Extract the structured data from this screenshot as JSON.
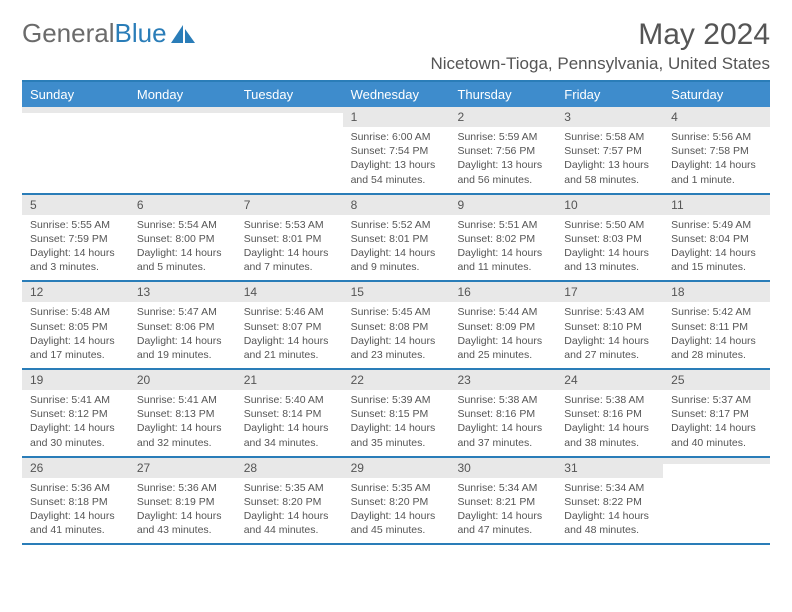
{
  "logo": {
    "part1": "General",
    "part2": "Blue"
  },
  "title": "May 2024",
  "location": "Nicetown-Tioga, Pennsylvania, United States",
  "colors": {
    "accent": "#2a7db8",
    "header_bg": "#3e8ccc",
    "daybar_bg": "#e8e8e8",
    "text": "#555555"
  },
  "day_headers": [
    "Sunday",
    "Monday",
    "Tuesday",
    "Wednesday",
    "Thursday",
    "Friday",
    "Saturday"
  ],
  "weeks": [
    [
      {
        "n": "",
        "sr": "",
        "ss": "",
        "dl": ""
      },
      {
        "n": "",
        "sr": "",
        "ss": "",
        "dl": ""
      },
      {
        "n": "",
        "sr": "",
        "ss": "",
        "dl": ""
      },
      {
        "n": "1",
        "sr": "Sunrise: 6:00 AM",
        "ss": "Sunset: 7:54 PM",
        "dl": "Daylight: 13 hours and 54 minutes."
      },
      {
        "n": "2",
        "sr": "Sunrise: 5:59 AM",
        "ss": "Sunset: 7:56 PM",
        "dl": "Daylight: 13 hours and 56 minutes."
      },
      {
        "n": "3",
        "sr": "Sunrise: 5:58 AM",
        "ss": "Sunset: 7:57 PM",
        "dl": "Daylight: 13 hours and 58 minutes."
      },
      {
        "n": "4",
        "sr": "Sunrise: 5:56 AM",
        "ss": "Sunset: 7:58 PM",
        "dl": "Daylight: 14 hours and 1 minute."
      }
    ],
    [
      {
        "n": "5",
        "sr": "Sunrise: 5:55 AM",
        "ss": "Sunset: 7:59 PM",
        "dl": "Daylight: 14 hours and 3 minutes."
      },
      {
        "n": "6",
        "sr": "Sunrise: 5:54 AM",
        "ss": "Sunset: 8:00 PM",
        "dl": "Daylight: 14 hours and 5 minutes."
      },
      {
        "n": "7",
        "sr": "Sunrise: 5:53 AM",
        "ss": "Sunset: 8:01 PM",
        "dl": "Daylight: 14 hours and 7 minutes."
      },
      {
        "n": "8",
        "sr": "Sunrise: 5:52 AM",
        "ss": "Sunset: 8:01 PM",
        "dl": "Daylight: 14 hours and 9 minutes."
      },
      {
        "n": "9",
        "sr": "Sunrise: 5:51 AM",
        "ss": "Sunset: 8:02 PM",
        "dl": "Daylight: 14 hours and 11 minutes."
      },
      {
        "n": "10",
        "sr": "Sunrise: 5:50 AM",
        "ss": "Sunset: 8:03 PM",
        "dl": "Daylight: 14 hours and 13 minutes."
      },
      {
        "n": "11",
        "sr": "Sunrise: 5:49 AM",
        "ss": "Sunset: 8:04 PM",
        "dl": "Daylight: 14 hours and 15 minutes."
      }
    ],
    [
      {
        "n": "12",
        "sr": "Sunrise: 5:48 AM",
        "ss": "Sunset: 8:05 PM",
        "dl": "Daylight: 14 hours and 17 minutes."
      },
      {
        "n": "13",
        "sr": "Sunrise: 5:47 AM",
        "ss": "Sunset: 8:06 PM",
        "dl": "Daylight: 14 hours and 19 minutes."
      },
      {
        "n": "14",
        "sr": "Sunrise: 5:46 AM",
        "ss": "Sunset: 8:07 PM",
        "dl": "Daylight: 14 hours and 21 minutes."
      },
      {
        "n": "15",
        "sr": "Sunrise: 5:45 AM",
        "ss": "Sunset: 8:08 PM",
        "dl": "Daylight: 14 hours and 23 minutes."
      },
      {
        "n": "16",
        "sr": "Sunrise: 5:44 AM",
        "ss": "Sunset: 8:09 PM",
        "dl": "Daylight: 14 hours and 25 minutes."
      },
      {
        "n": "17",
        "sr": "Sunrise: 5:43 AM",
        "ss": "Sunset: 8:10 PM",
        "dl": "Daylight: 14 hours and 27 minutes."
      },
      {
        "n": "18",
        "sr": "Sunrise: 5:42 AM",
        "ss": "Sunset: 8:11 PM",
        "dl": "Daylight: 14 hours and 28 minutes."
      }
    ],
    [
      {
        "n": "19",
        "sr": "Sunrise: 5:41 AM",
        "ss": "Sunset: 8:12 PM",
        "dl": "Daylight: 14 hours and 30 minutes."
      },
      {
        "n": "20",
        "sr": "Sunrise: 5:41 AM",
        "ss": "Sunset: 8:13 PM",
        "dl": "Daylight: 14 hours and 32 minutes."
      },
      {
        "n": "21",
        "sr": "Sunrise: 5:40 AM",
        "ss": "Sunset: 8:14 PM",
        "dl": "Daylight: 14 hours and 34 minutes."
      },
      {
        "n": "22",
        "sr": "Sunrise: 5:39 AM",
        "ss": "Sunset: 8:15 PM",
        "dl": "Daylight: 14 hours and 35 minutes."
      },
      {
        "n": "23",
        "sr": "Sunrise: 5:38 AM",
        "ss": "Sunset: 8:16 PM",
        "dl": "Daylight: 14 hours and 37 minutes."
      },
      {
        "n": "24",
        "sr": "Sunrise: 5:38 AM",
        "ss": "Sunset: 8:16 PM",
        "dl": "Daylight: 14 hours and 38 minutes."
      },
      {
        "n": "25",
        "sr": "Sunrise: 5:37 AM",
        "ss": "Sunset: 8:17 PM",
        "dl": "Daylight: 14 hours and 40 minutes."
      }
    ],
    [
      {
        "n": "26",
        "sr": "Sunrise: 5:36 AM",
        "ss": "Sunset: 8:18 PM",
        "dl": "Daylight: 14 hours and 41 minutes."
      },
      {
        "n": "27",
        "sr": "Sunrise: 5:36 AM",
        "ss": "Sunset: 8:19 PM",
        "dl": "Daylight: 14 hours and 43 minutes."
      },
      {
        "n": "28",
        "sr": "Sunrise: 5:35 AM",
        "ss": "Sunset: 8:20 PM",
        "dl": "Daylight: 14 hours and 44 minutes."
      },
      {
        "n": "29",
        "sr": "Sunrise: 5:35 AM",
        "ss": "Sunset: 8:20 PM",
        "dl": "Daylight: 14 hours and 45 minutes."
      },
      {
        "n": "30",
        "sr": "Sunrise: 5:34 AM",
        "ss": "Sunset: 8:21 PM",
        "dl": "Daylight: 14 hours and 47 minutes."
      },
      {
        "n": "31",
        "sr": "Sunrise: 5:34 AM",
        "ss": "Sunset: 8:22 PM",
        "dl": "Daylight: 14 hours and 48 minutes."
      },
      {
        "n": "",
        "sr": "",
        "ss": "",
        "dl": ""
      }
    ]
  ]
}
